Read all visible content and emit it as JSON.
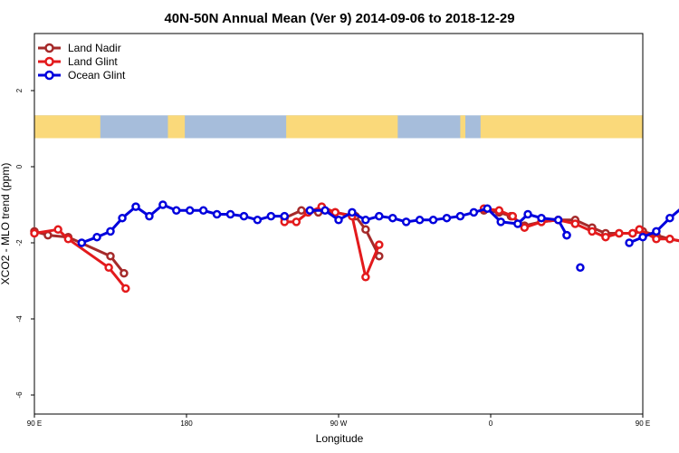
{
  "chart_data": {
    "type": "line",
    "title": "40N-50N Annual Mean (Ver 9)   2014-09-06 to 2018-12-29",
    "xlabel": "Longitude",
    "ylabel": "XCO2 - MLO trend (ppm)",
    "xlim": [
      0,
      360
    ],
    "ylim": [
      -6.5,
      3.5
    ],
    "x_ticks": [
      {
        "v": 0,
        "label": "90 E"
      },
      {
        "v": 90,
        "label": "180"
      },
      {
        "v": 180,
        "label": "90 W"
      },
      {
        "v": 270,
        "label": "0"
      },
      {
        "v": 360,
        "label": "90 E"
      },
      {
        "v": 450,
        "label": "180"
      }
    ],
    "y_ticks": [
      {
        "v": 2,
        "label": "2"
      },
      {
        "v": 0,
        "label": "0"
      },
      {
        "v": -2,
        "label": "-2"
      },
      {
        "v": -4,
        "label": "-4"
      },
      {
        "v": -6,
        "label": "-6"
      }
    ],
    "legend_position": "top-left",
    "land_band": {
      "ocean_color": "#a6bddb",
      "land_color": "#fad97a",
      "y_range": [
        0.75,
        1.35
      ],
      "land_segments": [
        [
          -7,
          39
        ],
        [
          79,
          89
        ],
        [
          149,
          215
        ],
        [
          252,
          255
        ],
        [
          264,
          368
        ],
        [
          390,
          408
        ]
      ]
    },
    "series": [
      {
        "name": "Land Nadir",
        "color": "#a52a2a",
        "x": [
          2,
          12,
          22,
          40,
          48,
          [],
          145,
          157,
          170,
          182,
          [],
          195,
          200,
          [],
          265,
          272,
          277,
          290,
          300,
          312,
          322,
          325,
          332,
          342,
          352,
          366,
          376,
          386,
          392,
          396,
          [],
          410,
          422,
          432,
          437,
          447,
          457,
          467,
          477,
          487,
          497,
          507,
          517,
          527,
          537,
          545
        ]
      },
      {
        "name": "Land Glint",
        "color": "#e31a1c",
        "x": [
          2,
          12,
          22,
          40,
          48,
          [],
          145,
          157,
          170,
          182,
          [],
          195,
          200,
          [],
          265,
          272,
          277,
          290,
          300,
          312,
          322,
          325,
          332,
          342,
          352,
          366,
          376,
          386,
          392,
          396,
          [],
          410,
          422,
          432,
          437,
          447,
          457,
          467,
          477,
          487,
          497,
          507,
          517,
          527,
          537,
          545
        ]
      },
      {
        "name": "Ocean Glint",
        "color": "#0000dd",
        "x": [
          2,
          12,
          22,
          40,
          48,
          [],
          145,
          157,
          170,
          182,
          [],
          195,
          200,
          [],
          265,
          272,
          277,
          290,
          300,
          312,
          322,
          325,
          332,
          342,
          352,
          366,
          376,
          386,
          392,
          396,
          [],
          410,
          422,
          432,
          437,
          447,
          457,
          467,
          477,
          487,
          497,
          507,
          517,
          527,
          537,
          545
        ]
      }
    ],
    "segments": {
      "Land Nadir": [
        [
          [
            0,
            -1.7
          ],
          [
            8,
            -1.8
          ],
          [
            20,
            -1.85
          ],
          [
            45,
            -2.35
          ],
          [
            53,
            -2.8
          ]
        ],
        [
          [
            148,
            -1.35
          ],
          [
            158,
            -1.15
          ],
          [
            168,
            -1.2
          ],
          [
            178,
            -1.2
          ],
          [
            190,
            -1.3
          ],
          [
            196,
            -1.65
          ],
          [
            204,
            -2.35
          ]
        ],
        [
          [
            266,
            -1.15
          ],
          [
            275,
            -1.2
          ],
          [
            282,
            -1.3
          ],
          [
            290,
            -1.55
          ],
          [
            300,
            -1.45
          ],
          [
            310,
            -1.4
          ],
          [
            320,
            -1.4
          ],
          [
            330,
            -1.6
          ],
          [
            338,
            -1.75
          ],
          [
            346,
            -1.75
          ],
          [
            354,
            -1.75
          ],
          [
            360,
            -1.7
          ]
        ],
        [
          [
            360,
            -1.7
          ],
          [
            368,
            -1.8
          ],
          [
            376,
            -1.9
          ],
          [
            388,
            -2.0
          ],
          [
            406,
            -2.35
          ],
          [
            412,
            -2.8
          ]
        ]
      ],
      "Land Glint": [
        [
          [
            0,
            -1.75
          ],
          [
            14,
            -1.65
          ],
          [
            20,
            -1.9
          ],
          [
            44,
            -2.65
          ],
          [
            54,
            -3.2
          ]
        ],
        [
          [
            148,
            -1.45
          ],
          [
            155,
            -1.45
          ],
          [
            162,
            -1.2
          ],
          [
            170,
            -1.05
          ],
          [
            178,
            -1.2
          ],
          [
            188,
            -1.3
          ],
          [
            196,
            -2.9
          ],
          [
            204,
            -2.05
          ]
        ],
        [
          [
            266,
            -1.1
          ],
          [
            275,
            -1.15
          ],
          [
            283,
            -1.3
          ],
          [
            290,
            -1.6
          ],
          [
            300,
            -1.45
          ],
          [
            310,
            -1.4
          ],
          [
            320,
            -1.5
          ],
          [
            330,
            -1.7
          ],
          [
            338,
            -1.85
          ],
          [
            346,
            -1.75
          ],
          [
            354,
            -1.75
          ],
          [
            358,
            -1.65
          ]
        ],
        [
          [
            358,
            -1.65
          ],
          [
            368,
            -1.9
          ],
          [
            376,
            -1.9
          ],
          [
            388,
            -2.0
          ],
          [
            406,
            -2.65
          ],
          [
            412,
            -3.2
          ]
        ]
      ],
      "Ocean Glint": [
        [
          [
            28,
            -2.0
          ],
          [
            37,
            -1.85
          ],
          [
            45,
            -1.7
          ],
          [
            52,
            -1.35
          ],
          [
            60,
            -1.05
          ],
          [
            68,
            -1.3
          ],
          [
            76,
            -1.0
          ],
          [
            84,
            -1.15
          ],
          [
            92,
            -1.15
          ],
          [
            100,
            -1.15
          ],
          [
            108,
            -1.25
          ],
          [
            116,
            -1.25
          ],
          [
            124,
            -1.3
          ],
          [
            132,
            -1.4
          ],
          [
            140,
            -1.3
          ],
          [
            148,
            -1.3
          ]
        ],
        [
          [
            163,
            -1.15
          ],
          [
            172,
            -1.15
          ],
          [
            180,
            -1.4
          ],
          [
            188,
            -1.2
          ],
          [
            196,
            -1.4
          ],
          [
            204,
            -1.3
          ],
          [
            212,
            -1.35
          ],
          [
            220,
            -1.45
          ],
          [
            228,
            -1.4
          ],
          [
            236,
            -1.4
          ],
          [
            244,
            -1.35
          ],
          [
            252,
            -1.3
          ],
          [
            260,
            -1.2
          ],
          [
            268,
            -1.1
          ],
          [
            276,
            -1.45
          ],
          [
            286,
            -1.5
          ],
          [
            292,
            -1.25
          ],
          [
            300,
            -1.35
          ],
          [
            310,
            -1.4
          ],
          [
            315,
            -1.8
          ]
        ],
        [
          [
            315,
            -1.8
          ]
        ],
        [
          [
            323,
            -2.65
          ]
        ],
        [
          [
            352,
            -2.0
          ],
          [
            360,
            -1.85
          ],
          [
            368,
            -1.7
          ],
          [
            376,
            -1.35
          ],
          [
            384,
            -1.05
          ],
          [
            392,
            -1.25
          ]
        ]
      ]
    }
  }
}
